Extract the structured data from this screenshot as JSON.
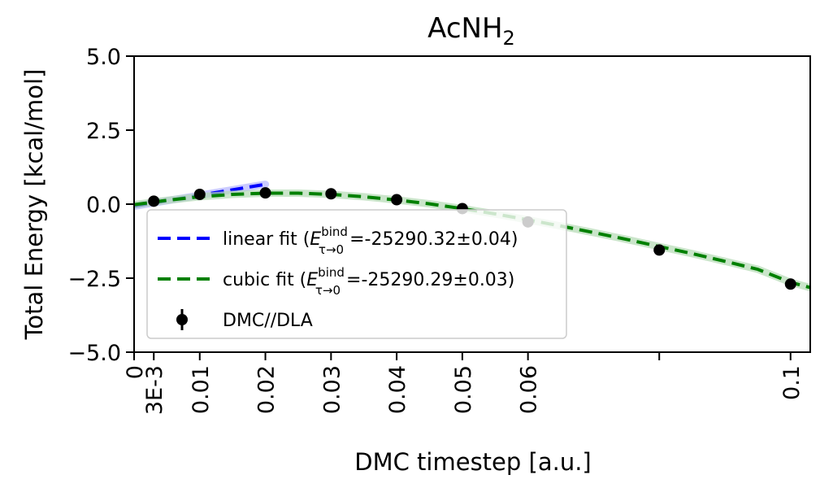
{
  "chart_data": {
    "type": "scatter",
    "title": "AcNH",
    "title_sub": "2",
    "xlabel": "DMC timestep [a.u.]",
    "ylabel": "Total Energy [kcal/mol]",
    "xlim": [
      0,
      0.103
    ],
    "ylim": [
      -5.0,
      5.0
    ],
    "x_ticks": [
      {
        "value": 0,
        "label": "0"
      },
      {
        "value": 0.003,
        "label": "3E-3"
      },
      {
        "value": 0.01,
        "label": "0.01"
      },
      {
        "value": 0.02,
        "label": "0.02"
      },
      {
        "value": 0.03,
        "label": "0.03"
      },
      {
        "value": 0.04,
        "label": "0.04"
      },
      {
        "value": 0.05,
        "label": "0.05"
      },
      {
        "value": 0.06,
        "label": "0.06"
      },
      {
        "value": 0.1,
        "label": "0.1"
      }
    ],
    "x_minor_ticks": [
      0.08
    ],
    "y_ticks": [
      {
        "value": 5.0,
        "label": "5.0"
      },
      {
        "value": 2.5,
        "label": "2.5"
      },
      {
        "value": 0.0,
        "label": "0.0"
      },
      {
        "value": -2.5,
        "label": "−2.5"
      },
      {
        "value": -5.0,
        "label": "−5.0"
      }
    ],
    "grid": false,
    "legend_position": "lower-left",
    "series": [
      {
        "name": "DMC//DLA",
        "kind": "points",
        "color": "#000000",
        "x": [
          0.003,
          0.01,
          0.02,
          0.03,
          0.04,
          0.05,
          0.06,
          0.08,
          0.1
        ],
        "y": [
          0.1,
          0.33,
          0.38,
          0.35,
          0.15,
          -0.15,
          -0.6,
          -1.55,
          -2.7
        ]
      },
      {
        "name": "linear fit",
        "legend_main": "linear fit (",
        "legend_sym": "E",
        "legend_sup": "bind",
        "legend_sub": "τ→0",
        "legend_val": " =-25290.32±0.04)",
        "kind": "dashed-line",
        "color": "#0000ff",
        "band_color": "#b3b3ff",
        "x": [
          0,
          0.02
        ],
        "y": [
          -0.07,
          0.67
        ]
      },
      {
        "name": "cubic fit",
        "legend_main": "cubic fit (",
        "legend_sym": "E",
        "legend_sup": "bind",
        "legend_sub": "τ→0",
        "legend_val": " =-25290.29±0.03)",
        "kind": "dashed-line",
        "color": "#008000",
        "band_color": "#b3dab3",
        "x": [
          0,
          0.005,
          0.01,
          0.015,
          0.02,
          0.025,
          0.03,
          0.035,
          0.04,
          0.045,
          0.05,
          0.055,
          0.06,
          0.065,
          0.07,
          0.075,
          0.08,
          0.085,
          0.09,
          0.095,
          0.1,
          0.103
        ],
        "y": [
          -0.02,
          0.13,
          0.25,
          0.33,
          0.37,
          0.37,
          0.33,
          0.25,
          0.14,
          0.01,
          -0.15,
          -0.33,
          -0.53,
          -0.74,
          -0.96,
          -1.19,
          -1.43,
          -1.67,
          -1.93,
          -2.2,
          -2.64,
          -2.82
        ]
      }
    ]
  }
}
